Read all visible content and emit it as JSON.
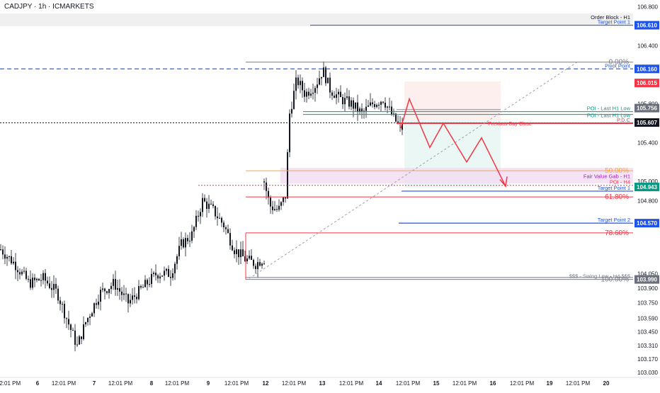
{
  "symbol_title": "CADJPY · 1h · ICMARKETS",
  "colors": {
    "candle": "#131722",
    "blue": "#2962ff",
    "darkblue": "#1e53e5",
    "fib_gray": "#787b86",
    "orange": "#f7a64a",
    "red": "#f23645",
    "green": "#089981",
    "purple": "#9c27b0",
    "axis_text": "#131722"
  },
  "chart_data": {
    "type": "candlestick",
    "title": "CADJPY · 1h · ICMARKETS",
    "y_axis": {
      "side": "right",
      "range": [
        102.98,
        106.87
      ],
      "ticks": [
        106.8,
        106.4,
        105.8,
        105.4,
        105.0,
        104.8,
        104.05,
        103.9,
        103.75,
        103.59,
        103.45,
        103.31,
        103.17,
        103.03
      ]
    },
    "x_axis": {
      "labels": [
        "12:01 PM",
        "6",
        "12:01 PM",
        "7",
        "12:01 PM",
        "8",
        "12:01 PM",
        "9",
        "12:01 PM",
        "12",
        "12:01 PM",
        "13",
        "12:01 PM",
        "14",
        "12:01 PM",
        "15",
        "12:01 PM",
        "16",
        "12:01 PM",
        "19",
        "12:01 PM",
        "20"
      ]
    },
    "price_levels": [
      {
        "label": "Order Block - H1",
        "price": 106.66,
        "style": "dark"
      },
      {
        "label": "Target Point 1",
        "price": 106.61,
        "style": "blue",
        "badge": "106.610"
      },
      {
        "label": "Pivot Point",
        "price": 106.16,
        "style": "blue-dashed",
        "badge": "106.160"
      },
      {
        "label": "",
        "price": 106.015,
        "style": "red-badge",
        "badge": "106.015"
      },
      {
        "label": "POI - Last H1 Low",
        "price": 105.72,
        "style": "green"
      },
      {
        "label": "POI - Last H1 Low",
        "price": 105.69,
        "style": "green"
      },
      {
        "label": "",
        "price": 105.756,
        "style": "gray-badge",
        "badge": "105.756"
      },
      {
        "label": "",
        "price": 105.607,
        "style": "dark-dotted",
        "badge": "105.607"
      },
      {
        "label": "P.D.C",
        "price": 105.6,
        "style": "red"
      },
      {
        "label": "Fair Value Gab - H1",
        "price": 105.02,
        "style": "purple"
      },
      {
        "label": "POI - H4",
        "price": 104.96,
        "style": "red-dotted"
      },
      {
        "label": "",
        "price": 104.943,
        "style": "green-badge",
        "badge": "104.943"
      },
      {
        "label": "Target Point 1",
        "price": 104.9,
        "style": "blue"
      },
      {
        "label": "Target Point 2",
        "price": 104.57,
        "style": "blue",
        "badge": "104.570"
      },
      {
        "label": "$$$ - Swing Low - H4 $$$",
        "price": 103.99,
        "style": "gray",
        "badge": "103.990"
      }
    ],
    "fibonacci": [
      {
        "label": "0.00%",
        "price": 106.23
      },
      {
        "label": "50.00%",
        "price": 105.11
      },
      {
        "label": "61.80%",
        "price": 104.84
      },
      {
        "label": "78.60%",
        "price": 104.47
      },
      {
        "label": "100.00%",
        "price": 103.99
      }
    ],
    "grid": false,
    "legend": "none"
  }
}
